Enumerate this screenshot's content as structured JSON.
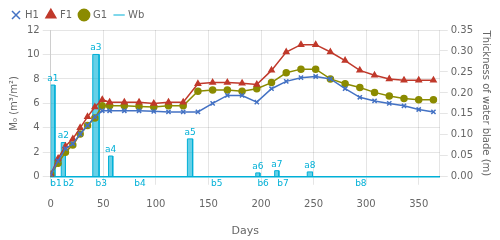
{
  "chart_data": {
    "type": "line",
    "xlabel": "Days",
    "ylabel": "M₀ (m³/m²)",
    "y2label": "Thickness of water blade (m)",
    "xlim": [
      0,
      370
    ],
    "xticks": [
      0,
      50,
      100,
      150,
      200,
      250,
      300,
      350
    ],
    "ylim": [
      0,
      12
    ],
    "yticks": [
      0,
      2,
      4,
      6,
      8,
      10,
      12
    ],
    "y2lim": [
      0,
      0.35
    ],
    "y2ticks": [
      {
        "value": 0,
        "label": "0.00"
      },
      0.05,
      {
        "value": 0.1,
        "label": "0.10"
      },
      0.15,
      {
        "value": 0.2,
        "label": "0.20"
      },
      0.25,
      {
        "value": 0.3,
        "label": "0.30"
      },
      0.35
    ],
    "grid": true,
    "legend": "upper left",
    "series": [
      {
        "name": "H1",
        "color": "#4472c4",
        "marker": "x",
        "x": [
          0,
          7,
          14,
          21,
          28,
          35,
          42,
          49,
          56,
          70,
          84,
          98,
          112,
          126,
          140,
          154,
          168,
          182,
          196,
          210,
          224,
          238,
          252,
          266,
          280,
          294,
          308,
          322,
          336,
          350,
          364
        ],
        "values": [
          0.2,
          1.3,
          2.3,
          2.7,
          3.5,
          4.2,
          4.9,
          5.4,
          5.4,
          5.4,
          5.4,
          5.35,
          5.3,
          5.3,
          5.3,
          6.0,
          6.65,
          6.65,
          6.1,
          7.2,
          7.8,
          8.1,
          8.2,
          8.0,
          7.2,
          6.5,
          6.2,
          6.0,
          5.8,
          5.5,
          5.3
        ]
      },
      {
        "name": "F1",
        "color": "#c0392b",
        "marker": "^",
        "x": [
          0,
          7,
          14,
          21,
          28,
          35,
          42,
          49,
          56,
          70,
          84,
          98,
          112,
          126,
          140,
          154,
          168,
          182,
          196,
          210,
          224,
          238,
          252,
          266,
          280,
          294,
          308,
          322,
          336,
          350,
          364
        ],
        "values": [
          0.2,
          1.5,
          2.5,
          3.1,
          4.0,
          4.9,
          5.7,
          6.3,
          6.1,
          6.1,
          6.1,
          6.0,
          6.1,
          6.1,
          7.6,
          7.7,
          7.7,
          7.65,
          7.55,
          8.7,
          10.2,
          10.8,
          10.8,
          10.2,
          9.5,
          8.7,
          8.3,
          8.0,
          7.9,
          7.9,
          7.9
        ]
      },
      {
        "name": "G1",
        "color": "#8b8b00",
        "marker": "o",
        "x": [
          0,
          7,
          14,
          21,
          28,
          35,
          42,
          49,
          56,
          70,
          84,
          98,
          112,
          126,
          140,
          154,
          168,
          182,
          196,
          210,
          224,
          238,
          252,
          266,
          280,
          294,
          308,
          322,
          336,
          350,
          364
        ],
        "values": [
          0.2,
          1.1,
          2.0,
          2.6,
          3.5,
          4.2,
          4.8,
          5.8,
          5.8,
          5.8,
          5.75,
          5.7,
          5.8,
          5.8,
          7.0,
          7.1,
          7.1,
          7.0,
          7.2,
          7.7,
          8.5,
          8.8,
          8.8,
          8.0,
          7.6,
          7.3,
          6.9,
          6.6,
          6.4,
          6.3,
          6.3
        ]
      },
      {
        "name": "Wb",
        "type": "bar",
        "color": "#00b0d7",
        "x": [
          0,
          10,
          40,
          55,
          130,
          195,
          213,
          244
        ],
        "width": [
          4,
          4,
          6,
          4,
          5,
          4,
          4,
          5
        ],
        "values": [
          7.5,
          2.8,
          10.0,
          1.7,
          3.1,
          0.32,
          0.5,
          0.4
        ],
        "labels": [
          "a1",
          "a2",
          "a3",
          "a4",
          "a5",
          "a6",
          "a7",
          "a8"
        ]
      }
    ],
    "annotations": [
      {
        "x": 5,
        "text": "b1"
      },
      {
        "x": 17,
        "text": "b2"
      },
      {
        "x": 48,
        "text": "b3"
      },
      {
        "x": 85,
        "text": "b4"
      },
      {
        "x": 158,
        "text": "b5"
      },
      {
        "x": 202,
        "text": "b6"
      },
      {
        "x": 221,
        "text": "b7"
      },
      {
        "x": 295,
        "text": "b8"
      }
    ]
  }
}
